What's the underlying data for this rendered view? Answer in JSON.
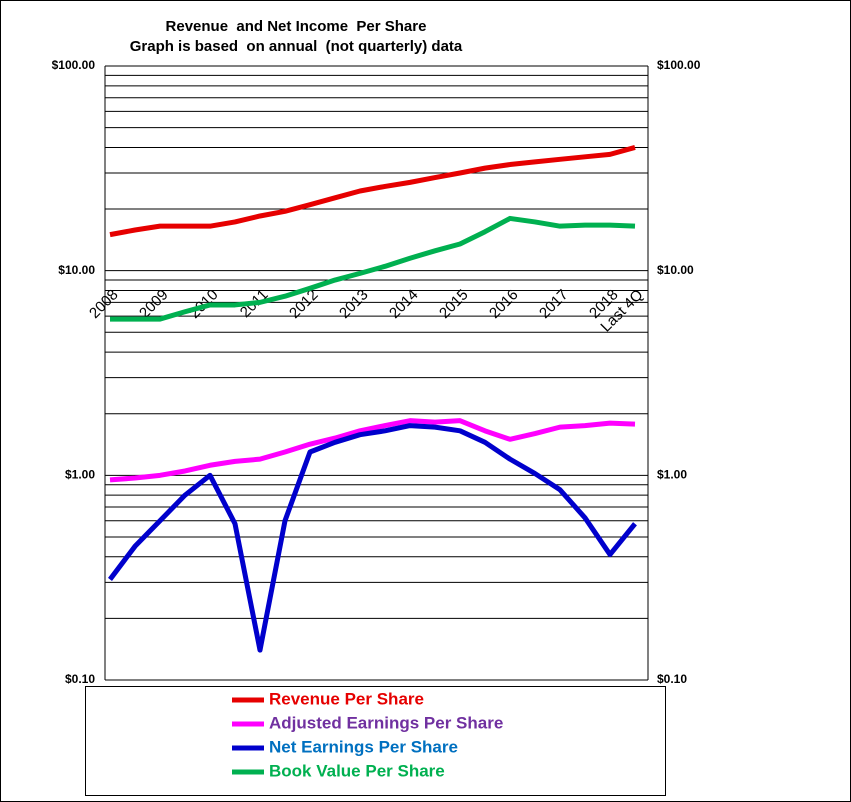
{
  "chart_data": {
    "type": "line",
    "title": "Revenue  and Net Income  Per Share",
    "subtitle": "Graph is based  on annual  (not quarterly) data",
    "categories": [
      "2008",
      null,
      "2009",
      null,
      "2010",
      null,
      "2011",
      null,
      "2012",
      null,
      "2013",
      null,
      "2014",
      null,
      "2015",
      null,
      "2016",
      null,
      "2017",
      null,
      "2018",
      "Last 4Q"
    ],
    "log_scale": true,
    "grid": true,
    "minor_grid": true,
    "ylim": [
      0.1,
      100
    ],
    "yticks": [
      {
        "value": 0.1,
        "label": "$0.10"
      },
      {
        "value": 1,
        "label": "$1.00"
      },
      {
        "value": 10,
        "label": "$10.00"
      },
      {
        "value": 100,
        "label": "$100.00"
      }
    ],
    "legend_position": "bottom",
    "series": [
      {
        "name": "Revenue Per Share",
        "color": "#e60000",
        "label_color": "#e60000",
        "values": [
          15,
          15.8,
          16.5,
          16.5,
          16.5,
          17.3,
          18.5,
          19.5,
          21,
          22.7,
          24.5,
          25.8,
          27,
          28.5,
          30,
          31.7,
          33,
          34,
          35,
          36,
          37,
          40
        ]
      },
      {
        "name": "Adjusted Earnings Per Share",
        "color": "#ff00ff",
        "label_color": "#7030a0",
        "values": [
          0.95,
          0.97,
          1.0,
          1.05,
          1.12,
          1.17,
          1.2,
          1.3,
          1.42,
          1.52,
          1.65,
          1.75,
          1.85,
          1.82,
          1.85,
          1.65,
          1.5,
          1.6,
          1.72,
          1.75,
          1.8,
          1.78
        ]
      },
      {
        "name": "Net Earnings Per Share",
        "color": "#0000cc",
        "label_color": "#0070c0",
        "values": [
          0.31,
          0.45,
          0.6,
          0.8,
          1.0,
          0.58,
          0.14,
          0.6,
          1.3,
          1.45,
          1.58,
          1.65,
          1.75,
          1.72,
          1.65,
          1.45,
          1.2,
          1.02,
          0.85,
          0.62,
          0.41,
          0.58
        ]
      },
      {
        "name": "Book Value Per Share",
        "color": "#00b050",
        "label_color": "#00b050",
        "values": [
          5.8,
          5.8,
          5.8,
          6.3,
          6.8,
          6.8,
          7,
          7.5,
          8.2,
          9,
          9.7,
          10.5,
          11.5,
          12.5,
          13.5,
          15.5,
          18,
          17.3,
          16.5,
          16.7,
          16.7,
          16.5
        ]
      }
    ]
  }
}
